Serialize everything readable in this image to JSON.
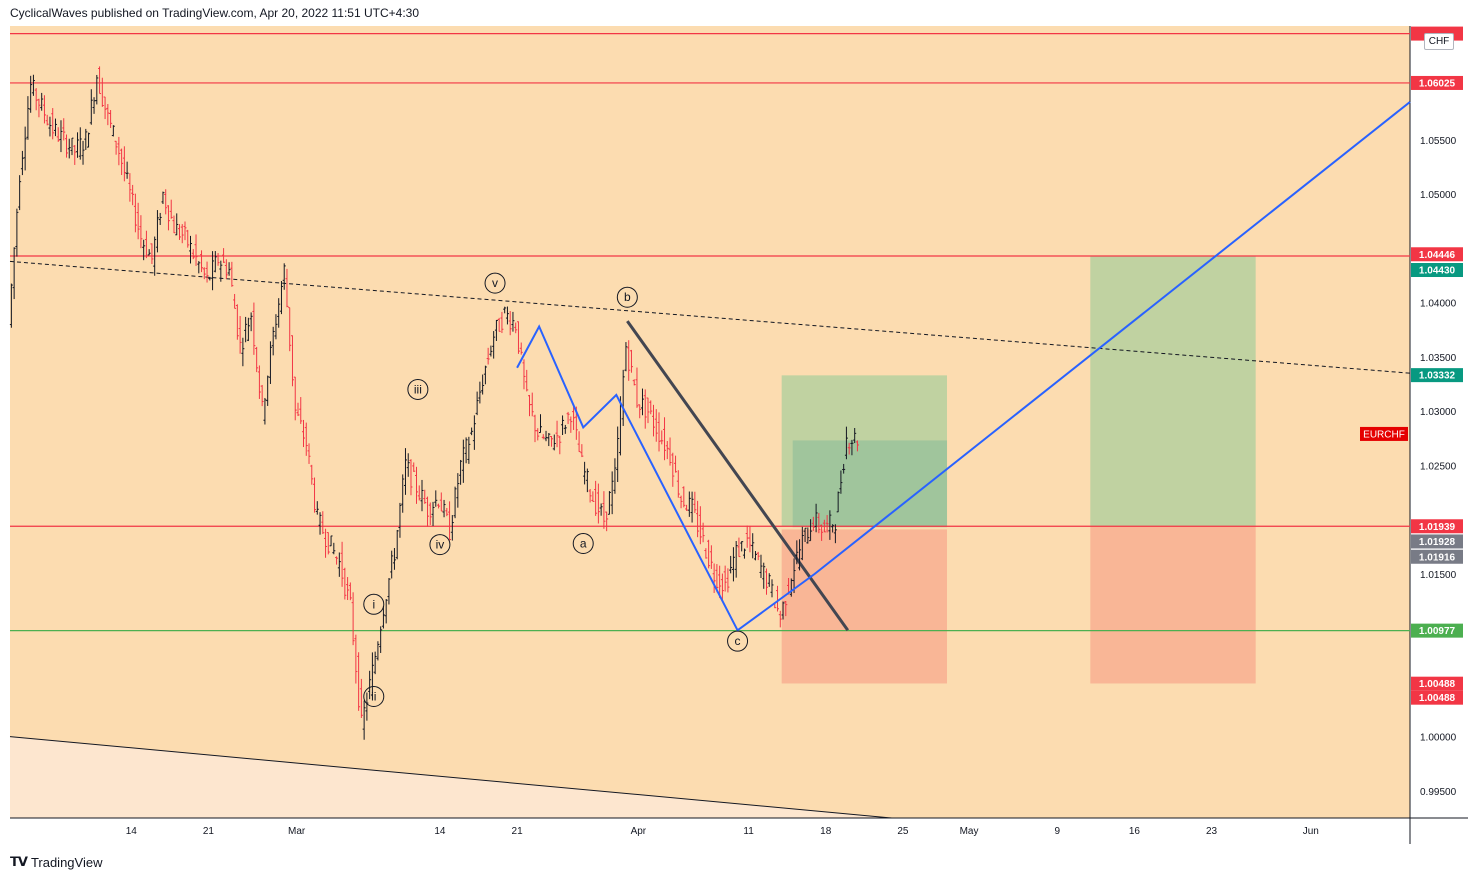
{
  "header": {
    "text": "CyclicalWaves published on TradingView.com, Apr 20, 2022 11:51 UTC+4:30"
  },
  "footer": {
    "logo_icon": "tradingview-logo-icon",
    "brand": "TradingView"
  },
  "corner_button": {
    "label": "CHF"
  },
  "colors": {
    "background": "#fcdcb0",
    "lower_wedge": "#fde6cf",
    "resistance": "#f23645",
    "support": "#4caf50",
    "wave_line": "#2962ff",
    "trend_line": "#434651",
    "target_zone": "#b9d0a0",
    "stop_zone": "#f8b193",
    "candle_up": "#131722",
    "candle_down": "#f23645"
  },
  "chart_data": {
    "type": "candlestick",
    "symbol": "EURCHF",
    "price_scale": {
      "min": 0.9925,
      "max": 1.0655,
      "ticks": [
        "1.05500",
        "1.05000",
        "1.04000",
        "1.03500",
        "1.03000",
        "1.02500",
        "1.01500",
        "1.00000",
        "0.99500"
      ]
    },
    "time_axis": {
      "start": "2022-02-03",
      "end": "2022-06-10",
      "ticks": [
        {
          "date": "2022-02-14",
          "label": "14"
        },
        {
          "date": "2022-02-21",
          "label": "21"
        },
        {
          "date": "2022-03-01",
          "label": "Mar"
        },
        {
          "date": "2022-03-14",
          "label": "14"
        },
        {
          "date": "2022-03-21",
          "label": "21"
        },
        {
          "date": "2022-04-01",
          "label": "Apr"
        },
        {
          "date": "2022-04-11",
          "label": "11"
        },
        {
          "date": "2022-04-18",
          "label": "18"
        },
        {
          "date": "2022-04-25",
          "label": "25"
        },
        {
          "date": "2022-05-01",
          "label": "May"
        },
        {
          "date": "2022-05-09",
          "label": "9"
        },
        {
          "date": "2022-05-16",
          "label": "16"
        },
        {
          "date": "2022-05-23",
          "label": "23"
        },
        {
          "date": "2022-06-01",
          "label": "Jun"
        }
      ]
    },
    "price_path": [
      [
        "2022-02-03",
        1.038
      ],
      [
        "2022-02-04",
        1.052
      ],
      [
        "2022-02-05",
        1.06
      ],
      [
        "2022-02-06",
        1.058
      ],
      [
        "2022-02-07",
        1.056
      ],
      [
        "2022-02-08",
        1.055
      ],
      [
        "2022-02-09",
        1.054
      ],
      [
        "2022-02-10",
        1.055
      ],
      [
        "2022-02-11",
        1.061
      ],
      [
        "2022-02-12",
        1.057
      ],
      [
        "2022-02-13",
        1.054
      ],
      [
        "2022-02-14",
        1.05
      ],
      [
        "2022-02-15",
        1.046
      ],
      [
        "2022-02-16",
        1.044
      ],
      [
        "2022-02-17",
        1.05
      ],
      [
        "2022-02-18",
        1.047
      ],
      [
        "2022-02-19",
        1.046
      ],
      [
        "2022-02-20",
        1.044
      ],
      [
        "2022-02-21",
        1.042
      ],
      [
        "2022-02-22",
        1.044
      ],
      [
        "2022-02-23",
        1.043
      ],
      [
        "2022-02-24",
        1.036
      ],
      [
        "2022-02-25",
        1.039
      ],
      [
        "2022-02-26",
        1.03
      ],
      [
        "2022-02-27",
        1.037
      ],
      [
        "2022-02-28",
        1.043
      ],
      [
        "2022-03-01",
        1.03
      ],
      [
        "2022-03-02",
        1.027
      ],
      [
        "2022-03-03",
        1.02
      ],
      [
        "2022-03-04",
        1.018
      ],
      [
        "2022-03-05",
        1.016
      ],
      [
        "2022-03-06",
        1.012
      ],
      [
        "2022-03-07",
        1.001
      ],
      [
        "2022-03-08",
        1.006
      ],
      [
        "2022-03-09",
        1.012
      ],
      [
        "2022-03-10",
        1.017
      ],
      [
        "2022-03-11",
        1.025
      ],
      [
        "2022-03-12",
        1.023
      ],
      [
        "2022-03-13",
        1.021
      ],
      [
        "2022-03-14",
        1.022
      ],
      [
        "2022-03-15",
        1.019
      ],
      [
        "2022-03-16",
        1.025
      ],
      [
        "2022-03-17",
        1.028
      ],
      [
        "2022-03-18",
        1.033
      ],
      [
        "2022-03-19",
        1.037
      ],
      [
        "2022-03-20",
        1.039
      ],
      [
        "2022-03-21",
        1.038
      ],
      [
        "2022-03-22",
        1.031
      ],
      [
        "2022-03-23",
        1.028
      ],
      [
        "2022-03-24",
        1.027
      ],
      [
        "2022-03-25",
        1.028
      ],
      [
        "2022-03-26",
        1.03
      ],
      [
        "2022-03-27",
        1.025
      ],
      [
        "2022-03-28",
        1.022
      ],
      [
        "2022-03-29",
        1.02
      ],
      [
        "2022-03-30",
        1.024
      ],
      [
        "2022-03-31",
        1.036
      ],
      [
        "2022-04-01",
        1.031
      ],
      [
        "2022-04-02",
        1.03
      ],
      [
        "2022-04-03",
        1.028
      ],
      [
        "2022-04-04",
        1.026
      ],
      [
        "2022-04-05",
        1.022
      ],
      [
        "2022-04-06",
        1.021
      ],
      [
        "2022-04-07",
        1.018
      ],
      [
        "2022-04-08",
        1.015
      ],
      [
        "2022-04-09",
        1.014
      ],
      [
        "2022-04-10",
        1.017
      ],
      [
        "2022-04-11",
        1.018
      ],
      [
        "2022-04-12",
        1.016
      ],
      [
        "2022-04-13",
        1.014
      ],
      [
        "2022-04-14",
        1.011
      ],
      [
        "2022-04-15",
        1.015
      ],
      [
        "2022-04-16",
        1.018
      ],
      [
        "2022-04-17",
        1.02
      ],
      [
        "2022-04-18",
        1.019
      ],
      [
        "2022-04-19",
        1.02
      ],
      [
        "2022-04-20",
        1.0275
      ],
      [
        "2022-04-21",
        1.0275
      ]
    ],
    "last_price": 1.0275,
    "horizontal_lines": [
      {
        "name": "top-resistance",
        "price": 1.0648,
        "color": "#f23645"
      },
      {
        "name": "resistance-1-06025",
        "price": 1.06025,
        "color": "#f23645"
      },
      {
        "name": "resistance-1-04430",
        "price": 1.0443,
        "color": "#f23645"
      },
      {
        "name": "resistance-1-01939",
        "price": 1.01939,
        "color": "#f23645"
      },
      {
        "name": "support-1-00977",
        "price": 1.00977,
        "color": "#4caf50"
      }
    ],
    "dashed_trendline": {
      "from": [
        "2022-02-03",
        1.0438
      ],
      "to": [
        "2022-06-10",
        1.0335
      ]
    },
    "lower_trendline": {
      "from": [
        "2022-02-03",
        1.0
      ],
      "to": [
        "2022-04-24",
        0.9925
      ]
    },
    "blue_wave_path": [
      [
        "2022-03-21",
        1.034
      ],
      [
        "2022-03-23",
        1.0378
      ],
      [
        "2022-03-27",
        1.0285
      ],
      [
        "2022-03-30",
        1.0315
      ],
      [
        "2022-04-10",
        1.0098
      ],
      [
        "2022-04-17",
        1.015
      ],
      [
        "2022-06-10",
        1.0585
      ]
    ],
    "grey_trendline": {
      "from": [
        "2022-03-31",
        1.0383
      ],
      "to": [
        "2022-04-20",
        1.0098
      ]
    },
    "position_zones": [
      {
        "name": "target-zone-1",
        "kind": "target",
        "from": "2022-04-14",
        "to": "2022-04-29",
        "top": 1.0333,
        "bottom": 1.0194
      },
      {
        "name": "target-zone-1-inner",
        "kind": "target-inner",
        "from": "2022-04-15",
        "to": "2022-04-29",
        "top": 1.0273,
        "bottom": 1.0193
      },
      {
        "name": "stop-zone-1",
        "kind": "stop",
        "from": "2022-04-14",
        "to": "2022-04-29",
        "top": 1.0191,
        "bottom": 1.0049
      },
      {
        "name": "target-zone-2",
        "kind": "target",
        "from": "2022-05-12",
        "to": "2022-05-27",
        "top": 1.0443,
        "bottom": 1.0194
      },
      {
        "name": "stop-zone-2",
        "kind": "stop",
        "from": "2022-05-12",
        "to": "2022-05-27",
        "top": 1.0194,
        "bottom": 1.0049
      }
    ],
    "wave_labels": [
      {
        "text": "i",
        "date": "2022-03-08",
        "price": 1.0122
      },
      {
        "text": "ii",
        "date": "2022-03-08",
        "price": 1.0037
      },
      {
        "text": "iii",
        "date": "2022-03-12",
        "price": 1.032
      },
      {
        "text": "iv",
        "date": "2022-03-14",
        "price": 1.0177
      },
      {
        "text": "v",
        "date": "2022-03-19",
        "price": 1.0418
      },
      {
        "text": "b",
        "date": "2022-03-31",
        "price": 1.0405
      },
      {
        "text": "a",
        "date": "2022-03-27",
        "price": 1.0178
      },
      {
        "text": "c",
        "date": "2022-04-10",
        "price": 1.0088
      }
    ],
    "price_labels": [
      {
        "text": "1.06025",
        "price": 1.06025,
        "bg": "#f23645",
        "fg": "#ffffff"
      },
      {
        "text": "1.04446",
        "price": 1.04446,
        "bg": "#f23645",
        "fg": "#ffffff"
      },
      {
        "text": "1.04430",
        "price": 1.0443,
        "bg": "#089981",
        "fg": "#ffffff"
      },
      {
        "text": "1.03332",
        "price": 1.03332,
        "bg": "#089981",
        "fg": "#ffffff"
      },
      {
        "text": "1.01939",
        "price": 1.01939,
        "bg": "#f23645",
        "fg": "#ffffff"
      },
      {
        "text": "1.01928",
        "price": 1.01928,
        "bg": "#787b86",
        "fg": "#ffffff"
      },
      {
        "text": "1.01916",
        "price": 1.01916,
        "bg": "#787b86",
        "fg": "#ffffff"
      },
      {
        "text": "1.00977",
        "price": 1.00977,
        "bg": "#4caf50",
        "fg": "#ffffff"
      },
      {
        "text": "1.00488",
        "price": 1.00488,
        "bg": "#f23645",
        "fg": "#ffffff"
      },
      {
        "text": "1.00488",
        "price": 1.00488,
        "bg": "#f23645",
        "fg": "#ffffff"
      }
    ],
    "symbol_tag": {
      "text": "EURCHF",
      "price": 1.0279,
      "bg": "#e50000",
      "fg": "#ffffff"
    }
  }
}
